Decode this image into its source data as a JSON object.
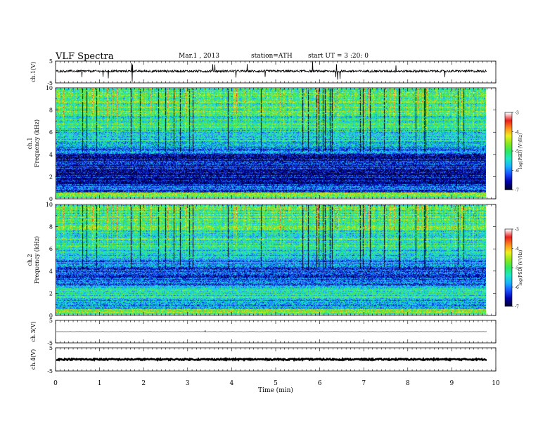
{
  "header": {
    "title": "VLF  Spectra",
    "date": "Mar.1  , 2013",
    "station": "station=ATH",
    "start_ut": "start  UT  =   3  :20: 0"
  },
  "chart_data": [
    {
      "type": "line",
      "panel": "ch1-waveform",
      "ylabel": "ch.1(V)",
      "ylim": [
        -5,
        5
      ],
      "yticks": [
        "5",
        "-5"
      ],
      "baseline": 0.4,
      "noise_amplitude": 0.5,
      "line_color": "#000000"
    },
    {
      "type": "heatmap",
      "panel": "ch1-spectrogram",
      "ylabel": "ch.1\nFrequency  (kHz)",
      "ylim": [
        0,
        10
      ],
      "yticks": [
        "0",
        "2",
        "4",
        "6",
        "8",
        "10"
      ],
      "colorbar": {
        "label": "log(PSD) (V²/Hz)",
        "range": [
          -7,
          -3
        ],
        "ticks": [
          "-3",
          "-4",
          "-5",
          "-6",
          "-7"
        ]
      },
      "bands": [
        {
          "from": 0.0,
          "to": 0.5,
          "level": -4.8
        },
        {
          "from": 0.5,
          "to": 1.2,
          "level": -6.2
        },
        {
          "from": 1.2,
          "to": 2.2,
          "level": -6.6
        },
        {
          "from": 2.2,
          "to": 3.2,
          "level": -6.4
        },
        {
          "from": 3.2,
          "to": 4.0,
          "level": -6.5
        },
        {
          "from": 4.0,
          "to": 4.6,
          "level": -6.0
        },
        {
          "from": 4.6,
          "to": 5.2,
          "level": -5.8
        },
        {
          "from": 5.2,
          "to": 6.2,
          "level": -5.4
        },
        {
          "from": 6.2,
          "to": 7.5,
          "level": -5.2
        },
        {
          "from": 7.5,
          "to": 9.0,
          "level": -5.0
        },
        {
          "from": 9.0,
          "to": 10.0,
          "level": -4.9
        }
      ]
    },
    {
      "type": "heatmap",
      "panel": "ch2-spectrogram",
      "ylabel": "ch.2\nFrequency  (kHz)",
      "ylim": [
        0,
        10
      ],
      "yticks": [
        "0",
        "2",
        "4",
        "6",
        "8",
        "10"
      ],
      "colorbar": {
        "label": "log(PSD) (V²/Hz)",
        "range": [
          -7,
          -3
        ],
        "ticks": [
          "-3",
          "-4",
          "-5",
          "-6",
          "-7"
        ]
      },
      "bands": [
        {
          "from": 0.0,
          "to": 0.5,
          "level": -4.9
        },
        {
          "from": 0.5,
          "to": 1.4,
          "level": -5.8
        },
        {
          "from": 1.4,
          "to": 2.6,
          "level": -5.4
        },
        {
          "from": 2.6,
          "to": 4.2,
          "level": -6.2
        },
        {
          "from": 4.2,
          "to": 5.0,
          "level": -5.9
        },
        {
          "from": 5.0,
          "to": 6.2,
          "level": -5.5
        },
        {
          "from": 6.2,
          "to": 8.0,
          "level": -5.2
        },
        {
          "from": 8.0,
          "to": 10.0,
          "level": -5.0
        }
      ]
    },
    {
      "type": "line",
      "panel": "ch3-waveform",
      "ylabel": "ch.3(V)",
      "ylim": [
        -5,
        5
      ],
      "yticks": [
        "5",
        "-5"
      ],
      "baseline": 0.0,
      "noise_amplitude": 0.05,
      "line_color": "#000000"
    },
    {
      "type": "line",
      "panel": "ch4-waveform",
      "ylabel": "ch.4(V)",
      "ylim": [
        -5,
        5
      ],
      "yticks": [
        "5",
        "-5"
      ],
      "baseline": 0.0,
      "noise_amplitude": 0.3,
      "line_color": "#000000"
    }
  ],
  "x_axis": {
    "label": "Time  (min)",
    "xlim": [
      0,
      10
    ],
    "ticks": [
      "0",
      "1",
      "2",
      "3",
      "4",
      "5",
      "6",
      "7",
      "8",
      "9",
      "10"
    ],
    "data_end": 9.8
  },
  "colors": {
    "colormap": [
      "#000033",
      "#0000aa",
      "#1a4fff",
      "#19b4ff",
      "#1ee8c8",
      "#2ee860",
      "#8ae81e",
      "#f0f01e",
      "#ff8c1e",
      "#e81e1e",
      "#ffffff"
    ],
    "striation": "#000000"
  }
}
